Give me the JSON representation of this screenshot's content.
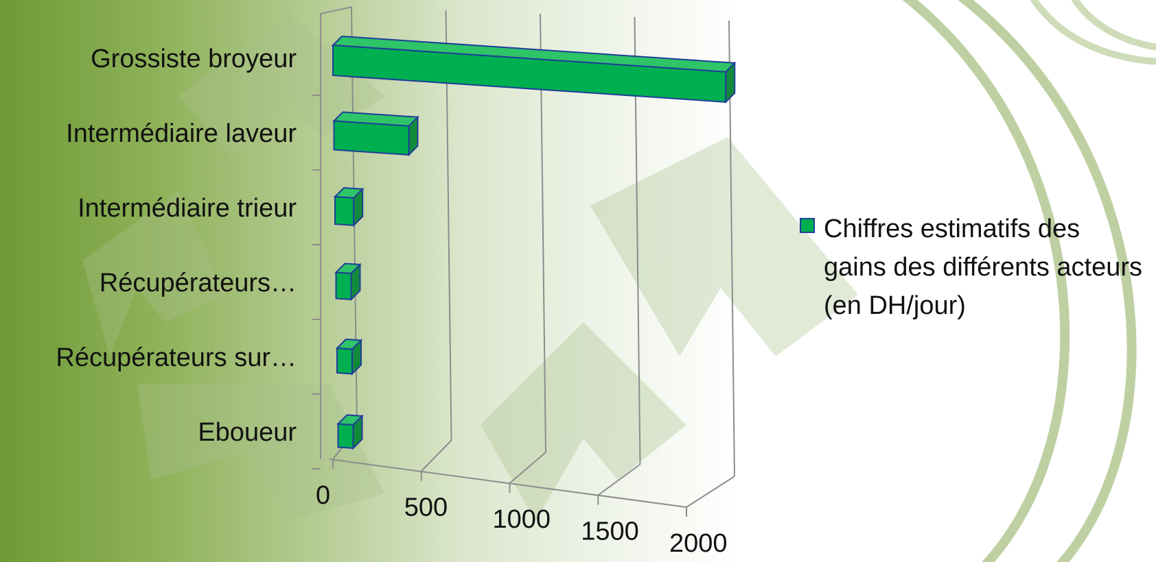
{
  "chart_data": {
    "type": "bar",
    "orientation": "horizontal",
    "style": "3d-clustered",
    "categories": [
      "Grossiste broyeur",
      "Intermédiaire laveur",
      "Intermédiaire trieur",
      "Récupérateurs…",
      "Récupérateurs sur…",
      "Eboueur"
    ],
    "series": [
      {
        "name": "Chiffres estimatifs des gains des différents acteurs (en DH/jour)",
        "values": [
          2100,
          400,
          100,
          50,
          50,
          40
        ]
      }
    ],
    "x_ticks": [
      "0",
      "500",
      "1000",
      "1500",
      "2000"
    ],
    "xlim": [
      0,
      2000
    ],
    "grid": true,
    "legend_position": "right",
    "colors": {
      "bar_face": "#00b050",
      "bar_side": "#128a3c",
      "bar_top": "#2ec468",
      "bar_edge": "#1f3d99",
      "grid": "#8c8c8c"
    }
  }
}
